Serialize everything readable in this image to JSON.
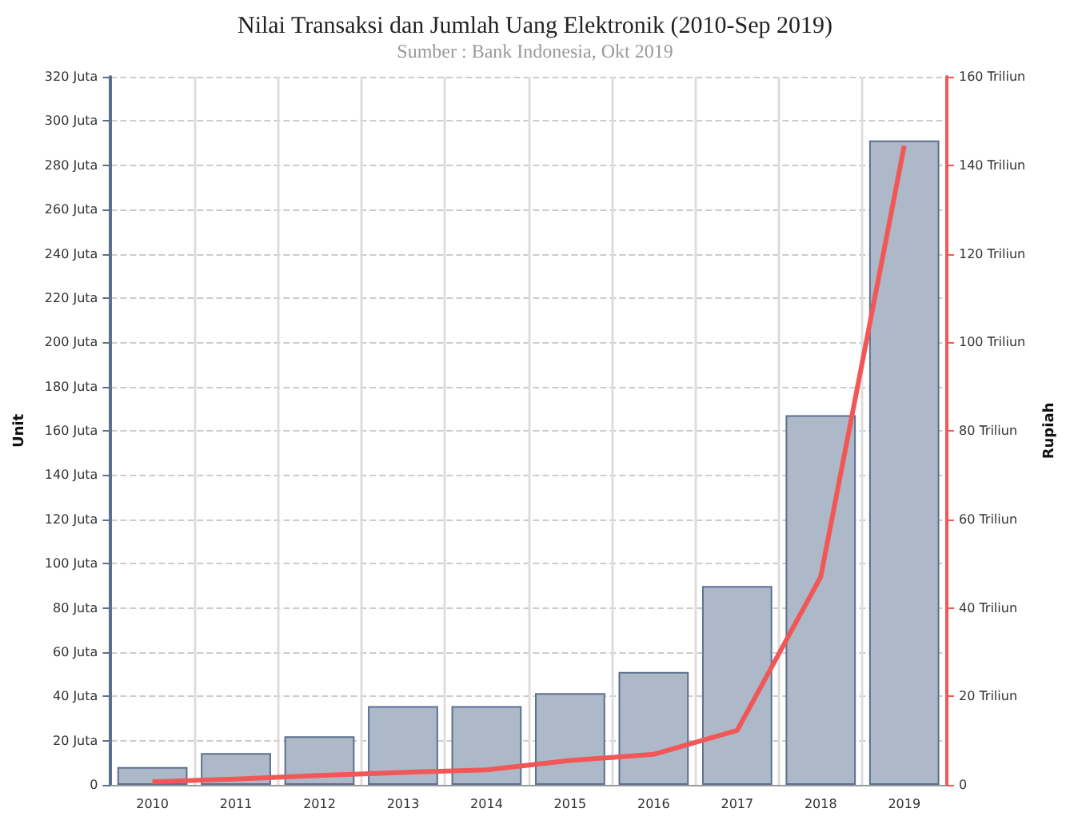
{
  "chart_data": {
    "type": "bar",
    "title": "Nilai Transaksi dan Jumlah Uang Elektronik (2010-Sep 2019)",
    "subtitle": "Sumber : Bank Indonesia, Okt 2019",
    "ylabel": "Unit",
    "y2label": "Rupiah",
    "categories": [
      "2010",
      "2011",
      "2012",
      "2013",
      "2014",
      "2015",
      "2016",
      "2017",
      "2018",
      "2019"
    ],
    "series": [
      {
        "color": "#adb8c8",
        "values": [
          8,
          14.4,
          21.9,
          35.6,
          35.6,
          41.4,
          51,
          89.8,
          167,
          291.2
        ]
      },
      {
        "type": "line",
        "axis": "y2",
        "color": "#f25757",
        "values": [
          0.7,
          1.3,
          2.1,
          2.8,
          3.4,
          5.5,
          6.9,
          12.3,
          47,
          144.4
        ]
      }
    ],
    "ylim": [
      0,
      320
    ],
    "yticks": [
      {
        "value": 0,
        "label": "0"
      },
      {
        "value": 20,
        "label": "20 Juta"
      },
      {
        "value": 40,
        "label": "40 Juta"
      },
      {
        "value": 60,
        "label": "60 Juta"
      },
      {
        "value": 80,
        "label": "80 Juta"
      },
      {
        "value": 100,
        "label": "100 Juta"
      },
      {
        "value": 120,
        "label": "120 Juta"
      },
      {
        "value": 140,
        "label": "140 Juta"
      },
      {
        "value": 160,
        "label": "160 Juta"
      },
      {
        "value": 180,
        "label": "180 Juta"
      },
      {
        "value": 200,
        "label": "200 Juta"
      },
      {
        "value": 220,
        "label": "220 Juta"
      },
      {
        "value": 240,
        "label": "240 Juta"
      },
      {
        "value": 260,
        "label": "260 Juta"
      },
      {
        "value": 280,
        "label": "280 Juta"
      },
      {
        "value": 300,
        "label": "300 Juta"
      },
      {
        "value": 320,
        "label": "320 Juta"
      }
    ],
    "y2lim": [
      0,
      160
    ],
    "y2ticks": [
      {
        "value": 0,
        "label": "0"
      },
      {
        "value": 20,
        "label": "20 Triliun"
      },
      {
        "value": 40,
        "label": "40 Triliun"
      },
      {
        "value": 60,
        "label": "60 Triliun"
      },
      {
        "value": 80,
        "label": "80 Triliun"
      },
      {
        "value": 100,
        "label": "100 Triliun"
      },
      {
        "value": 120,
        "label": "120 Triliun"
      },
      {
        "value": 140,
        "label": "140 Triliun"
      },
      {
        "value": 160,
        "label": "160 Triliun"
      }
    ],
    "grid": true,
    "line_style": "solid"
  }
}
